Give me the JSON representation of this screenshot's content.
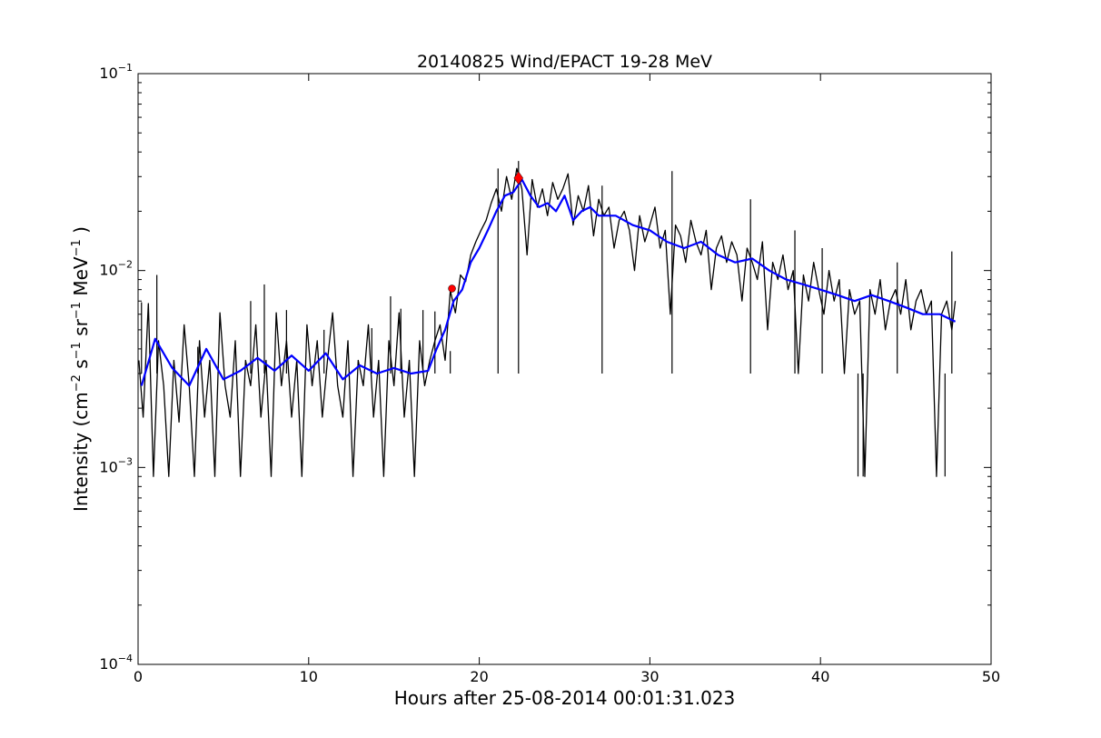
{
  "chart_data": {
    "type": "line",
    "title": "20140825 Wind/EPACT 19-28 MeV",
    "xlabel": "Hours after 25-08-2014 00:01:31.023",
    "ylabel": {
      "prefix": "Intensity (cm",
      "exp1": "−2",
      "mid1": " s",
      "exp2": "−1",
      "mid2": " sr",
      "exp3": "−1",
      "mid3": " MeV",
      "exp4": "−1",
      "suffix": " )"
    },
    "xlim": [
      0,
      50
    ],
    "ylim": [
      0.0001,
      0.1
    ],
    "yscale": "log",
    "grid": false,
    "x_ticks": [
      0,
      10,
      20,
      30,
      40,
      50
    ],
    "x_tick_labels": [
      "0",
      "10",
      "20",
      "30",
      "40",
      "50"
    ],
    "y_ticks": [
      0.0001,
      0.001,
      0.01,
      0.1
    ],
    "y_tick_labels": [
      {
        "base": "10",
        "exp": "−4"
      },
      {
        "base": "10",
        "exp": "−3"
      },
      {
        "base": "10",
        "exp": "−2"
      },
      {
        "base": "10",
        "exp": "−1"
      }
    ],
    "series": [
      {
        "color": "#000000",
        "style": "line",
        "description": "raw intensity",
        "x": [
          0.05,
          0.3,
          0.6,
          0.9,
          1.2,
          1.5,
          1.8,
          2.1,
          2.4,
          2.7,
          3.0,
          3.3,
          3.6,
          3.9,
          4.2,
          4.5,
          4.8,
          5.1,
          5.4,
          5.7,
          6.0,
          6.3,
          6.6,
          6.9,
          7.2,
          7.5,
          7.8,
          8.1,
          8.4,
          8.7,
          9.0,
          9.3,
          9.6,
          9.9,
          10.2,
          10.5,
          10.8,
          11.1,
          11.4,
          11.7,
          12.0,
          12.3,
          12.6,
          12.9,
          13.2,
          13.5,
          13.8,
          14.1,
          14.4,
          14.7,
          15.0,
          15.3,
          15.6,
          15.9,
          16.2,
          16.5,
          16.8,
          17.1,
          17.4,
          17.7,
          18.0,
          18.3,
          18.6,
          18.9,
          19.2,
          19.5,
          19.8,
          20.1,
          20.4,
          20.7,
          21.0,
          21.3,
          21.6,
          21.9,
          22.2,
          22.5,
          22.8,
          23.1,
          23.4,
          23.7,
          24.0,
          24.3,
          24.6,
          24.9,
          25.2,
          25.5,
          25.8,
          26.1,
          26.4,
          26.7,
          27.0,
          27.3,
          27.6,
          27.9,
          28.2,
          28.5,
          28.8,
          29.1,
          29.4,
          29.7,
          30.0,
          30.3,
          30.6,
          30.9,
          31.2,
          31.5,
          31.8,
          32.1,
          32.4,
          32.7,
          33.0,
          33.3,
          33.6,
          33.9,
          34.2,
          34.5,
          34.8,
          35.1,
          35.4,
          35.7,
          36.0,
          36.3,
          36.6,
          36.9,
          37.2,
          37.5,
          37.8,
          38.1,
          38.4,
          38.7,
          39.0,
          39.3,
          39.6,
          39.9,
          40.2,
          40.5,
          40.8,
          41.1,
          41.4,
          41.7,
          42.0,
          42.3,
          42.6,
          42.9,
          43.2,
          43.5,
          43.8,
          44.1,
          44.4,
          44.7,
          45.0,
          45.3,
          45.6,
          45.9,
          46.2,
          46.5,
          46.8,
          47.1,
          47.4,
          47.7,
          47.9
        ],
        "y": [
          0.0035,
          0.0018,
          0.0068,
          0.0009,
          0.0044,
          0.0026,
          0.0009,
          0.0035,
          0.0017,
          0.0053,
          0.0026,
          0.0009,
          0.0044,
          0.0018,
          0.0035,
          0.0009,
          0.0061,
          0.0026,
          0.0018,
          0.0044,
          0.0009,
          0.0035,
          0.0026,
          0.0053,
          0.0018,
          0.0035,
          0.0009,
          0.0061,
          0.0026,
          0.0044,
          0.0018,
          0.0035,
          0.0009,
          0.0053,
          0.0026,
          0.0044,
          0.0018,
          0.0035,
          0.0061,
          0.0026,
          0.0018,
          0.0044,
          0.0009,
          0.0035,
          0.0026,
          0.0053,
          0.0018,
          0.0035,
          0.0009,
          0.0044,
          0.0026,
          0.0061,
          0.0018,
          0.0035,
          0.0009,
          0.0044,
          0.0026,
          0.0035,
          0.0044,
          0.0053,
          0.0035,
          0.0079,
          0.0061,
          0.0095,
          0.0088,
          0.012,
          0.014,
          0.016,
          0.018,
          0.022,
          0.026,
          0.02,
          0.03,
          0.023,
          0.033,
          0.026,
          0.012,
          0.029,
          0.021,
          0.026,
          0.019,
          0.028,
          0.023,
          0.026,
          0.031,
          0.017,
          0.024,
          0.02,
          0.027,
          0.015,
          0.023,
          0.019,
          0.021,
          0.013,
          0.018,
          0.02,
          0.016,
          0.01,
          0.019,
          0.014,
          0.017,
          0.021,
          0.013,
          0.016,
          0.006,
          0.017,
          0.015,
          0.011,
          0.018,
          0.014,
          0.012,
          0.016,
          0.008,
          0.013,
          0.015,
          0.011,
          0.014,
          0.012,
          0.007,
          0.013,
          0.011,
          0.009,
          0.014,
          0.005,
          0.011,
          0.009,
          0.012,
          0.008,
          0.01,
          0.003,
          0.0095,
          0.007,
          0.011,
          0.008,
          0.006,
          0.01,
          0.007,
          0.009,
          0.003,
          0.008,
          0.006,
          0.007,
          0.0009,
          0.008,
          0.006,
          0.009,
          0.005,
          0.007,
          0.008,
          0.006,
          0.009,
          0.005,
          0.007,
          0.008,
          0.006,
          0.007,
          0.0009,
          0.006,
          0.007,
          0.005,
          0.007
        ],
        "spikes": [
          {
            "x": 0.2,
            "y": 0.0069
          },
          {
            "x": 1.1,
            "y": 0.0095
          },
          {
            "x": 3.5,
            "y": 0.0041
          },
          {
            "x": 6.6,
            "y": 0.007
          },
          {
            "x": 7.4,
            "y": 0.0085
          },
          {
            "x": 8.7,
            "y": 0.0063
          },
          {
            "x": 10.9,
            "y": 0.005
          },
          {
            "x": 13.7,
            "y": 0.0051
          },
          {
            "x": 14.8,
            "y": 0.0074
          },
          {
            "x": 15.4,
            "y": 0.0064
          },
          {
            "x": 16.7,
            "y": 0.0063
          },
          {
            "x": 17.4,
            "y": 0.0062
          },
          {
            "x": 18.3,
            "y": 0.0039
          },
          {
            "x": 21.1,
            "y": 0.033
          },
          {
            "x": 22.3,
            "y": 0.036
          },
          {
            "x": 27.2,
            "y": 0.027
          },
          {
            "x": 31.3,
            "y": 0.032
          },
          {
            "x": 35.9,
            "y": 0.023
          },
          {
            "x": 38.5,
            "y": 0.016
          },
          {
            "x": 40.1,
            "y": 0.013
          },
          {
            "x": 42.2,
            "y": 0.0009
          },
          {
            "x": 42.5,
            "y": 0.0009
          },
          {
            "x": 44.5,
            "y": 0.011
          },
          {
            "x": 47.3,
            "y": 0.0009
          },
          {
            "x": 47.7,
            "y": 0.0125
          }
        ]
      },
      {
        "color": "#0000ff",
        "style": "line",
        "description": "smoothed intensity",
        "x": [
          0.2,
          1.0,
          2.0,
          3.0,
          4.0,
          5.0,
          6.0,
          7.0,
          8.0,
          9.0,
          10.0,
          11.0,
          12.0,
          13.0,
          14.0,
          15.0,
          16.0,
          17.0,
          17.5,
          18.0,
          18.5,
          19.0,
          19.5,
          20.0,
          20.5,
          21.0,
          21.5,
          22.0,
          22.5,
          23.0,
          23.5,
          24.0,
          24.5,
          25.0,
          25.5,
          26.0,
          26.5,
          27.0,
          28.0,
          29.0,
          30.0,
          31.0,
          32.0,
          33.0,
          34.0,
          35.0,
          36.0,
          37.0,
          38.0,
          39.0,
          40.0,
          41.0,
          42.0,
          43.0,
          44.0,
          45.0,
          46.0,
          47.0,
          47.9
        ],
        "y": [
          0.0026,
          0.0045,
          0.0032,
          0.0026,
          0.004,
          0.0028,
          0.0031,
          0.0036,
          0.0031,
          0.0037,
          0.0031,
          0.0038,
          0.0028,
          0.0033,
          0.003,
          0.0032,
          0.003,
          0.0031,
          0.004,
          0.005,
          0.007,
          0.008,
          0.011,
          0.013,
          0.016,
          0.02,
          0.024,
          0.025,
          0.029,
          0.024,
          0.021,
          0.022,
          0.02,
          0.024,
          0.018,
          0.02,
          0.021,
          0.019,
          0.019,
          0.017,
          0.016,
          0.014,
          0.013,
          0.014,
          0.012,
          0.011,
          0.0115,
          0.01,
          0.009,
          0.0085,
          0.008,
          0.0075,
          0.007,
          0.0075,
          0.007,
          0.0065,
          0.006,
          0.006,
          0.0055
        ]
      }
    ],
    "markers": [
      {
        "x": 18.4,
        "y": 0.0081,
        "color": "#ff0000",
        "shape": "circle"
      },
      {
        "x": 22.3,
        "y": 0.0295,
        "color": "#ff0000",
        "shape": "diamond"
      }
    ]
  }
}
